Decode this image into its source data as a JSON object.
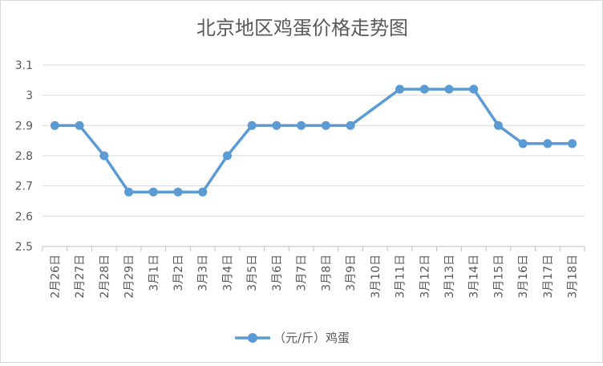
{
  "chart_data": {
    "type": "line",
    "title": "北京地区鸡蛋价格走势图",
    "xlabel": "",
    "ylabel": "",
    "categories": [
      "2月26日",
      "2月27日",
      "2月28日",
      "2月29日",
      "3月1日",
      "3月2日",
      "3月3日",
      "3月4日",
      "3月5日",
      "3月6日",
      "3月7日",
      "3月8日",
      "3月9日",
      "3月10日",
      "3月11日",
      "3月12日",
      "3月13日",
      "3月14日",
      "3月15日",
      "3月16日",
      "3月17日",
      "3月18日"
    ],
    "series": [
      {
        "name": "（元/斤）鸡蛋",
        "values": [
          2.9,
          2.9,
          2.8,
          2.68,
          2.68,
          2.68,
          2.68,
          2.8,
          2.9,
          2.9,
          2.9,
          2.9,
          2.9,
          null,
          3.02,
          3.02,
          3.02,
          3.02,
          2.9,
          2.84,
          2.84,
          2.84
        ],
        "color": "#5b9bd5"
      }
    ],
    "ylim": [
      2.5,
      3.1
    ],
    "yticks": [
      "2.5",
      "2.6",
      "2.7",
      "2.8",
      "2.9",
      "3",
      "3.1"
    ],
    "grid": true,
    "legend": "bottom"
  }
}
